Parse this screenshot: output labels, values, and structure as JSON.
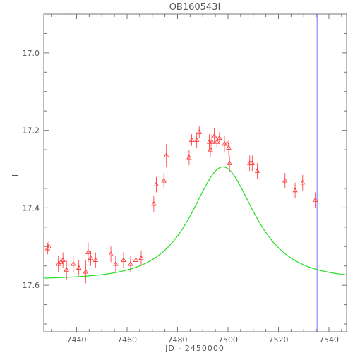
{
  "chart_data": {
    "type": "scatter",
    "title": "OB160543I",
    "xlabel": "JD - 2450000",
    "ylabel": "I",
    "xlim": [
      7427,
      7547
    ],
    "ylim": [
      17.72,
      16.9
    ],
    "y_inverted": true,
    "grid": false,
    "x_ticks": [
      7440,
      7460,
      7480,
      7500,
      7520,
      7540
    ],
    "y_ticks": [
      17.0,
      17.2,
      17.4,
      17.6
    ],
    "x_tick_labels": [
      "7440",
      "7460",
      "7480",
      "7500",
      "7520",
      "7540"
    ],
    "y_tick_labels": [
      "17.0",
      "17.2",
      "17.4",
      "17.6"
    ],
    "colors": {
      "data": "#ff3030",
      "model": "#22dd22",
      "marker_line": "#7777ff",
      "axes": "#777777"
    },
    "vertical_line_x": 7535.3,
    "series": [
      {
        "kind": "observations",
        "marker": "triangle",
        "x": [
          7428.5,
          7429.0,
          7432.8,
          7433.8,
          7434.6,
          7436.0,
          7438.7,
          7440.9,
          7443.6,
          7444.6,
          7445.6,
          7447.5,
          7453.6,
          7455.5,
          7458.6,
          7461.4,
          7463.5,
          7465.6,
          7470.6,
          7471.6,
          7474.6,
          7475.6,
          7484.6,
          7485.6,
          7487.6,
          7488.6,
          7492.6,
          7493.0,
          7493.6,
          7494.6,
          7495.6,
          7496.6,
          7498.6,
          7499.6,
          7500.3,
          7500.6,
          7508.6,
          7509.6,
          7511.6,
          7522.6,
          7526.6,
          7529.6,
          7534.6
        ],
        "y": [
          17.505,
          17.5,
          17.545,
          17.54,
          17.535,
          17.56,
          17.545,
          17.555,
          17.565,
          17.515,
          17.53,
          17.535,
          17.52,
          17.545,
          17.535,
          17.545,
          17.535,
          17.53,
          17.39,
          17.34,
          17.33,
          17.265,
          17.27,
          17.225,
          17.225,
          17.205,
          17.23,
          17.25,
          17.23,
          17.215,
          17.23,
          17.22,
          17.235,
          17.235,
          17.245,
          17.285,
          17.285,
          17.285,
          17.305,
          17.33,
          17.355,
          17.335,
          17.38
        ],
        "err": [
          0.015,
          0.015,
          0.02,
          0.02,
          0.02,
          0.025,
          0.02,
          0.02,
          0.03,
          0.025,
          0.02,
          0.02,
          0.02,
          0.02,
          0.02,
          0.02,
          0.02,
          0.02,
          0.02,
          0.02,
          0.02,
          0.03,
          0.02,
          0.015,
          0.02,
          0.015,
          0.02,
          0.02,
          0.02,
          0.02,
          0.015,
          0.015,
          0.02,
          0.02,
          0.02,
          0.02,
          0.02,
          0.02,
          0.02,
          0.02,
          0.02,
          0.02,
          0.02
        ]
      },
      {
        "kind": "model",
        "curve": "pspl",
        "t0": 7498.0,
        "u0": 0.78,
        "tE": 17.8,
        "mag_base": 17.585,
        "fs": 0.55
      }
    ]
  }
}
